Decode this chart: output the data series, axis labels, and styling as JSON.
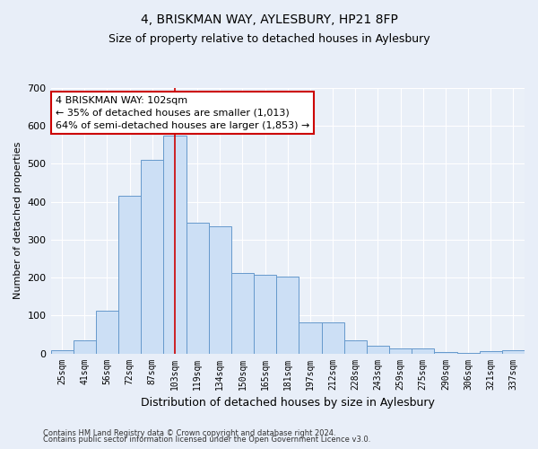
{
  "title": "4, BRISKMAN WAY, AYLESBURY, HP21 8FP",
  "subtitle": "Size of property relative to detached houses in Aylesbury",
  "xlabel": "Distribution of detached houses by size in Aylesbury",
  "ylabel": "Number of detached properties",
  "categories": [
    "25sqm",
    "41sqm",
    "56sqm",
    "72sqm",
    "87sqm",
    "103sqm",
    "119sqm",
    "134sqm",
    "150sqm",
    "165sqm",
    "181sqm",
    "197sqm",
    "212sqm",
    "228sqm",
    "243sqm",
    "259sqm",
    "275sqm",
    "290sqm",
    "306sqm",
    "321sqm",
    "337sqm"
  ],
  "values": [
    8,
    35,
    112,
    415,
    510,
    575,
    345,
    335,
    212,
    207,
    203,
    82,
    82,
    35,
    20,
    13,
    13,
    4,
    2,
    5,
    8
  ],
  "bar_color": "#ccdff5",
  "bar_edge_color": "#6699cc",
  "vline_x_idx": 5,
  "vline_color": "#cc0000",
  "annotation_text": "4 BRISKMAN WAY: 102sqm\n← 35% of detached houses are smaller (1,013)\n64% of semi-detached houses are larger (1,853) →",
  "annotation_box_facecolor": "#ffffff",
  "annotation_box_edgecolor": "#cc0000",
  "ylim": [
    0,
    700
  ],
  "yticks": [
    0,
    100,
    200,
    300,
    400,
    500,
    600,
    700
  ],
  "footer1": "Contains HM Land Registry data © Crown copyright and database right 2024.",
  "footer2": "Contains public sector information licensed under the Open Government Licence v3.0.",
  "fig_facecolor": "#e8eef8",
  "plot_facecolor": "#eaf0f8",
  "grid_color": "#ffffff",
  "title_fontsize": 10,
  "subtitle_fontsize": 9,
  "ylabel_fontsize": 8,
  "xlabel_fontsize": 9,
  "tick_fontsize": 7,
  "footer_fontsize": 6,
  "ann_fontsize": 8
}
